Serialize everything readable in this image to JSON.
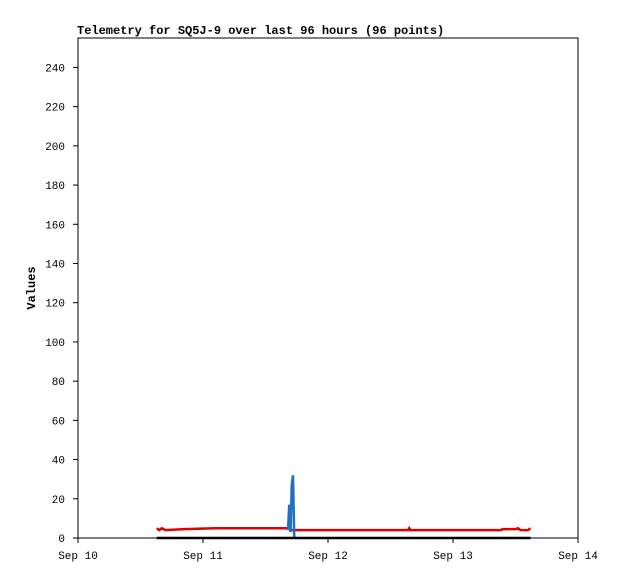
{
  "chart_data": {
    "type": "line",
    "title": "Telemetry for SQ5J-9 over last 96 hours (96 points)",
    "y_label": "Values",
    "x": [
      0.63,
      0.65,
      0.67,
      0.7,
      0.85,
      1.1,
      1.4,
      1.68,
      1.69,
      1.7,
      1.71,
      1.72,
      1.73,
      1.75,
      2.2,
      2.64,
      2.65,
      2.66,
      3.0,
      3.38,
      3.4,
      3.5,
      3.52,
      3.54,
      3.6,
      3.62
    ],
    "series": [
      {
        "color": "#e00000",
        "values": [
          5,
          4,
          5,
          4,
          4.5,
          5,
          5,
          5,
          4.5,
          4.5,
          4,
          4,
          4,
          4,
          4,
          4,
          5,
          4,
          4,
          4,
          4.5,
          4.5,
          5,
          4,
          4,
          5
        ]
      },
      {
        "color": "#1f6fc5",
        "values": [
          null,
          null,
          null,
          null,
          null,
          null,
          null,
          4,
          17,
          3,
          27,
          32,
          0,
          null,
          null,
          null,
          null,
          null,
          null,
          null,
          null,
          null,
          null,
          null,
          null,
          null
        ]
      },
      {
        "color": "#000000",
        "values": [
          0,
          0,
          0,
          0,
          0,
          0,
          0,
          0,
          0,
          0,
          0,
          0,
          0,
          0,
          0,
          0,
          0,
          0,
          0,
          0,
          0,
          0,
          0,
          0,
          0,
          0
        ]
      }
    ],
    "xlim": [
      0,
      4
    ],
    "xticks": [
      {
        "value": 0,
        "label": "Sep 10"
      },
      {
        "value": 1,
        "label": "Sep 11"
      },
      {
        "value": 2,
        "label": "Sep 12"
      },
      {
        "value": 3,
        "label": "Sep 13"
      },
      {
        "value": 4,
        "label": "Sep 14"
      }
    ],
    "ylim": [
      0,
      255
    ],
    "yticks": [
      0,
      20,
      40,
      60,
      80,
      100,
      120,
      140,
      160,
      180,
      200,
      220,
      240
    ],
    "grid": false
  }
}
